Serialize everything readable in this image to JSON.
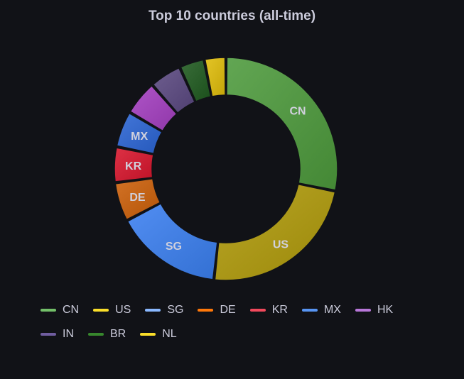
{
  "panel": {
    "title": "Top 10 countries (all-time)"
  },
  "chart_data": {
    "type": "pie",
    "variant": "donut",
    "title": "Top 10 countries (all-time)",
    "legend_placement": "bottom",
    "categories": [
      "CN",
      "US",
      "SG",
      "DE",
      "KR",
      "MX",
      "HK",
      "IN",
      "BR",
      "NL"
    ],
    "values": [
      27.8,
      23.2,
      15.4,
      5.6,
      5.1,
      5.2,
      5.0,
      4.6,
      3.6,
      3.1
    ],
    "slice_labels": [
      "CN",
      "US",
      "SG",
      "DE",
      "KR",
      "MX",
      "",
      "",
      "",
      ""
    ],
    "slice_colors": [
      "#4d9a3c",
      "#b09a0a",
      "#3a7ff0",
      "#cc5f08",
      "#d8152c",
      "#2a64d4",
      "#a43ec0",
      "#5a4880",
      "#1f5a1f",
      "#e0bd0a"
    ],
    "legend_colors": [
      "#73bf69",
      "#fade2a",
      "#8ab8ff",
      "#ff780a",
      "#f2495c",
      "#5794f2",
      "#b877d9",
      "#705da0",
      "#37872d",
      "#fade2a"
    ]
  }
}
